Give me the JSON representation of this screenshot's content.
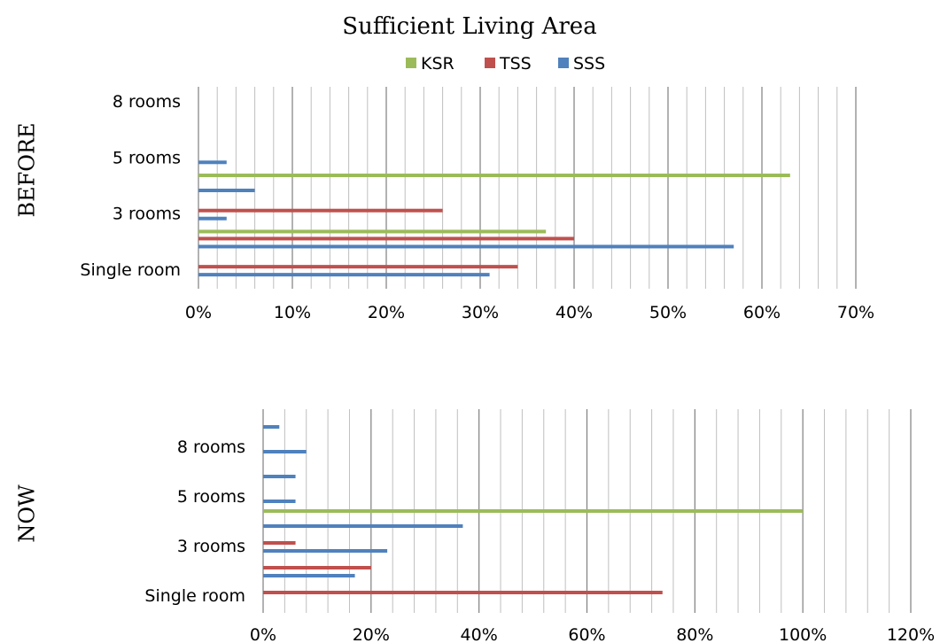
{
  "chart_data": {
    "type": "bar",
    "title": "Sufficient Living Area",
    "legend": {
      "placement": "top",
      "items": [
        {
          "name": "KSR",
          "color": "#9bbb59"
        },
        {
          "name": "TSS",
          "color": "#c0504d"
        },
        {
          "name": "SSS",
          "color": "#4f81bd"
        }
      ]
    },
    "panels": [
      {
        "label": "BEFORE",
        "orientation": "horizontal",
        "grid": true,
        "xlim": [
          0,
          70
        ],
        "xtick_labels": [
          "0%",
          "10%",
          "20%",
          "30%",
          "40%",
          "50%",
          "60%",
          "70%"
        ],
        "categories": [
          "Single room",
          "",
          "3 rooms",
          "",
          "5 rooms",
          "",
          "8 rooms"
        ],
        "series": [
          {
            "name": "SSS",
            "color": "#4f81bd",
            "values": [
              31,
              57,
              3,
              6,
              3,
              null,
              null
            ]
          },
          {
            "name": "TSS",
            "color": "#c0504d",
            "values": [
              34,
              40,
              26,
              null,
              null,
              null,
              null
            ]
          },
          {
            "name": "KSR",
            "color": "#9bbb59",
            "values": [
              null,
              37,
              null,
              63,
              null,
              null,
              null
            ]
          }
        ]
      },
      {
        "label": "NOW",
        "orientation": "horizontal",
        "grid": true,
        "xlim": [
          0,
          120
        ],
        "xtick_labels": [
          "0%",
          "20%",
          "40%",
          "60%",
          "80%",
          "100%",
          "120%"
        ],
        "categories": [
          "Single room",
          "",
          "3 rooms",
          "",
          "5 rooms",
          "",
          "8 rooms",
          ""
        ],
        "series": [
          {
            "name": "SSS",
            "color": "#4f81bd",
            "values": [
              null,
              17,
              23,
              37,
              6,
              6,
              8,
              3
            ]
          },
          {
            "name": "TSS",
            "color": "#c0504d",
            "values": [
              74,
              20,
              6,
              null,
              null,
              null,
              null,
              null
            ]
          },
          {
            "name": "KSR",
            "color": "#9bbb59",
            "values": [
              null,
              null,
              null,
              100,
              null,
              null,
              null,
              null
            ]
          }
        ]
      }
    ]
  }
}
